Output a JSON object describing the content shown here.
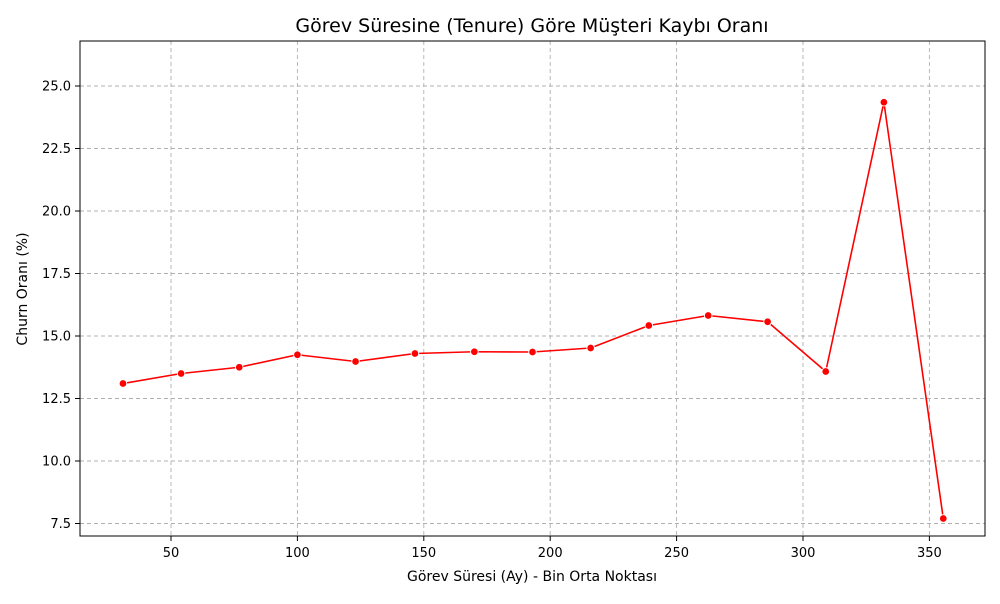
{
  "chart_data": {
    "type": "line",
    "title": "Görev Süresine (Tenure) Göre Müşteri Kaybı Oranı",
    "xlabel": "Görev Süresi (Ay) - Bin Orta Noktası",
    "ylabel": "Churn Oranı (%)",
    "xlim": [
      14,
      372
    ],
    "ylim": [
      7.0,
      26.8
    ],
    "x_ticks": [
      50,
      100,
      150,
      200,
      250,
      300,
      350
    ],
    "x_tick_labels": [
      "50",
      "100",
      "150",
      "200",
      "250",
      "300",
      "350"
    ],
    "y_ticks": [
      7.5,
      10.0,
      12.5,
      15.0,
      17.5,
      20.0,
      22.5,
      25.0
    ],
    "y_tick_labels": [
      "7.5",
      "10.0",
      "12.5",
      "15.0",
      "17.5",
      "20.0",
      "22.5",
      "25.0"
    ],
    "grid": true,
    "grid_style": "dashed",
    "series": [
      {
        "color": "#ff0000",
        "marker": "circle",
        "x": [
          31,
          54,
          77,
          100,
          123,
          146.5,
          170,
          193,
          216,
          239,
          262.5,
          286,
          309,
          332,
          355.5
        ],
        "y": [
          13.1,
          13.5,
          13.75,
          14.25,
          13.98,
          14.3,
          14.37,
          14.36,
          14.52,
          15.42,
          15.82,
          15.57,
          13.58,
          24.35,
          7.7
        ]
      }
    ]
  }
}
